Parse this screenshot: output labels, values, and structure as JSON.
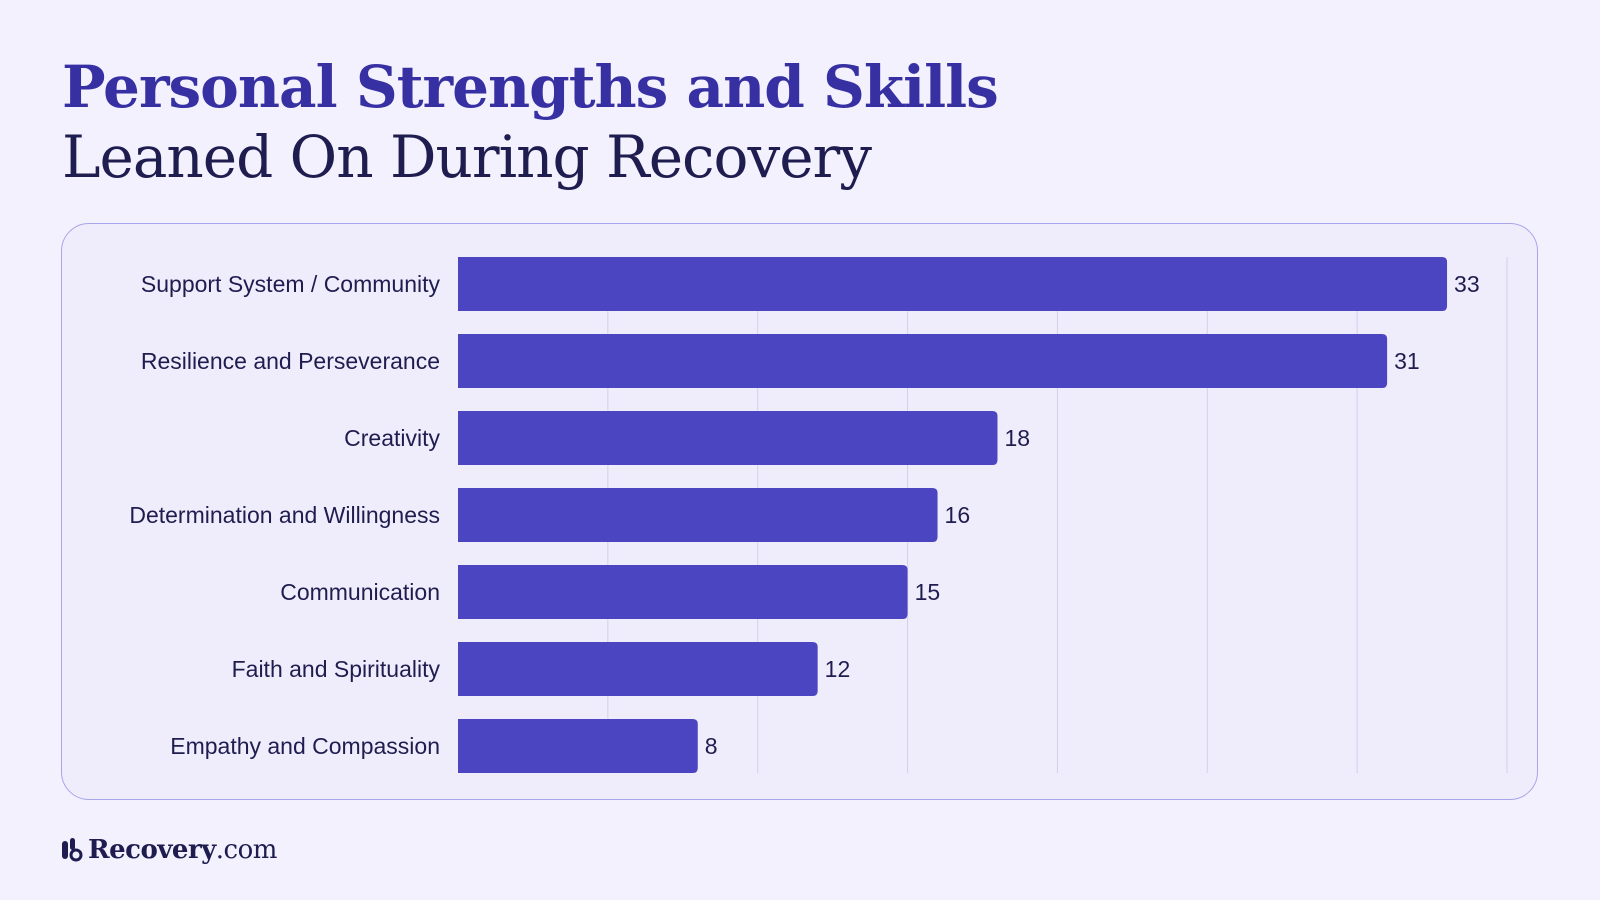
{
  "title": {
    "line1": "Personal Strengths and Skills",
    "line2": "Leaned On During Recovery"
  },
  "brand": {
    "name": "Recovery",
    "suffix": ".com",
    "icon": "recovery-logo-icon"
  },
  "colors": {
    "background": "#f2f1fd",
    "card_background": "#efedfb",
    "card_border": "#a9a5ea",
    "bar": "#4b45c2",
    "title_accent": "#3730a3",
    "text": "#1f1d4f",
    "grid": "#d3d0ea"
  },
  "chart_data": {
    "type": "bar",
    "orientation": "horizontal",
    "title": "Personal Strengths and Skills Leaned On During Recovery",
    "categories": [
      "Support System / Community",
      "Resilience and Perseverance",
      "Creativity",
      "Determination and Willingness",
      "Communication",
      "Faith and Spirituality",
      "Empathy and Compassion"
    ],
    "values": [
      33,
      31,
      18,
      16,
      15,
      12,
      8
    ],
    "xlim": [
      0,
      35
    ],
    "grid_interval": 5,
    "grid": true,
    "data_labels": true,
    "legend": "none"
  }
}
